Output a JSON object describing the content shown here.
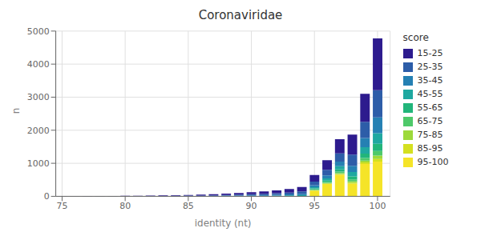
{
  "chart_data": {
    "type": "bar",
    "title": "Coronaviridae",
    "xlabel": "identity (nt)",
    "ylabel": "n",
    "stacked": true,
    "grid": true,
    "legend": "right",
    "legend_title": "score",
    "xlim": [
      74.5,
      101.0
    ],
    "xticks": [
      75,
      80,
      85,
      90,
      95,
      100
    ],
    "ylim": [
      0,
      5000
    ],
    "yticks": [
      0,
      1000,
      2000,
      3000,
      4000,
      5000
    ],
    "x": [
      75,
      76,
      77,
      78,
      79,
      80,
      81,
      82,
      83,
      84,
      85,
      86,
      87,
      88,
      89,
      90,
      91,
      92,
      93,
      94,
      95,
      96,
      97,
      98,
      99,
      100
    ],
    "series": [
      {
        "name": "15-25",
        "color": "#2d1b8e",
        "values": [
          4,
          4,
          5,
          6,
          7,
          9,
          11,
          13,
          16,
          19,
          24,
          29,
          35,
          42,
          51,
          62,
          74,
          89,
          108,
          135,
          200,
          295,
          430,
          600,
          850,
          1570
        ]
      },
      {
        "name": "25-35",
        "color": "#2d5da8",
        "values": [
          1,
          1,
          2,
          2,
          3,
          4,
          5,
          6,
          7,
          9,
          11,
          14,
          17,
          21,
          26,
          32,
          38,
          46,
          57,
          72,
          110,
          165,
          245,
          340,
          490,
          820
        ]
      },
      {
        "name": "35-45",
        "color": "#2580b3",
        "values": [
          0,
          0,
          0,
          1,
          1,
          1,
          2,
          2,
          3,
          4,
          5,
          7,
          9,
          11,
          14,
          17,
          20,
          24,
          30,
          40,
          60,
          95,
          140,
          190,
          280,
          480
        ]
      },
      {
        "name": "45-55",
        "color": "#1fa8a0",
        "values": [
          0,
          0,
          0,
          0,
          0,
          0,
          0,
          0,
          1,
          2,
          3,
          4,
          5,
          6,
          8,
          10,
          12,
          15,
          18,
          25,
          40,
          62,
          95,
          130,
          190,
          320
        ]
      },
      {
        "name": "55-65",
        "color": "#22b57a",
        "values": [
          0,
          0,
          0,
          0,
          0,
          0,
          0,
          0,
          0,
          0,
          0,
          0,
          0,
          2,
          3,
          4,
          5,
          7,
          9,
          12,
          28,
          45,
          70,
          95,
          135,
          220
        ]
      },
      {
        "name": "65-75",
        "color": "#4ec96a",
        "values": [
          0,
          0,
          0,
          0,
          0,
          0,
          0,
          0,
          0,
          0,
          0,
          0,
          0,
          0,
          0,
          0,
          0,
          0,
          0,
          0,
          18,
          28,
          45,
          60,
          80,
          140
        ]
      },
      {
        "name": "75-85",
        "color": "#9dd93a",
        "values": [
          0,
          0,
          0,
          0,
          0,
          0,
          0,
          0,
          0,
          0,
          0,
          0,
          0,
          0,
          0,
          0,
          0,
          0,
          0,
          0,
          12,
          20,
          30,
          40,
          55,
          100
        ]
      },
      {
        "name": "85-95",
        "color": "#d4e020",
        "values": [
          0,
          0,
          0,
          0,
          0,
          0,
          0,
          0,
          0,
          0,
          0,
          0,
          0,
          0,
          0,
          0,
          0,
          0,
          0,
          0,
          10,
          15,
          22,
          30,
          45,
          80
        ]
      },
      {
        "name": "95-100",
        "color": "#f5e428",
        "values": [
          0,
          0,
          0,
          0,
          0,
          0,
          0,
          0,
          0,
          0,
          0,
          0,
          0,
          0,
          0,
          0,
          0,
          0,
          0,
          0,
          170,
          370,
          650,
          380,
          980,
          1050
        ]
      }
    ]
  }
}
